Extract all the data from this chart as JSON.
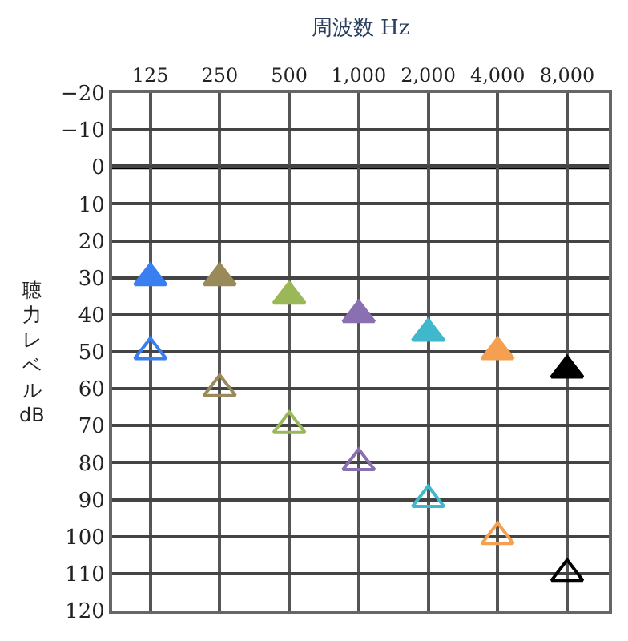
{
  "chart_data": {
    "type": "scatter",
    "xlabel": "周波数 Hz",
    "ylabel": "聴力レベル dB",
    "categories": [
      "125",
      "250",
      "500",
      "1,000",
      "2,000",
      "4,000",
      "8,000"
    ],
    "series": [
      {
        "marker": "triangle",
        "colors": [
          "#3a7ff0",
          "#9a8a5a",
          "#9ab858",
          "#8a70b0",
          "#40b8cc",
          "#f4a050",
          "#000000"
        ],
        "values": [
          30,
          30,
          35,
          40,
          45,
          50,
          55
        ]
      },
      {
        "marker": "triangle-open",
        "colors": [
          "#3a7ff0",
          "#9a8a5a",
          "#9ab858",
          "#8a70b0",
          "#40b8cc",
          "#f4a050",
          "#000000"
        ],
        "values": [
          50,
          60,
          70,
          80,
          90,
          100,
          110
        ]
      }
    ],
    "ylim": [
      120,
      -20
    ],
    "yticks": [
      {
        "value": -20,
        "label": "−20"
      },
      {
        "value": -10,
        "label": "−10"
      },
      0,
      10,
      20,
      30,
      40,
      50,
      60,
      70,
      80,
      90,
      100,
      110,
      120
    ],
    "ref_lines": [
      {
        "axis": "y",
        "value": 0,
        "color": "#000000"
      }
    ],
    "grid": true
  }
}
